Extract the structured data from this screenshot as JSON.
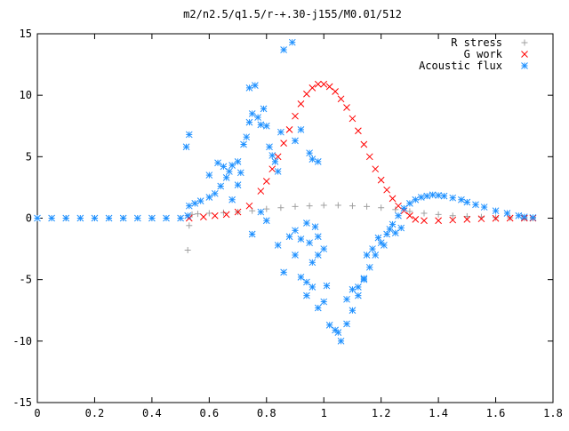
{
  "chart_data": {
    "type": "scatter",
    "title": "m2/n2.5/q1.5/r-+.30-j155/M0.01/512",
    "xlabel": "",
    "ylabel": "",
    "xlim": [
      0,
      1.8
    ],
    "ylim": [
      -15,
      15
    ],
    "x_ticks": [
      "0",
      "0.2",
      "0.4",
      "0.6",
      "0.8",
      "1",
      "1.2",
      "1.4",
      "1.6",
      "1.8"
    ],
    "y_ticks": [
      "15",
      "10",
      "5",
      "0",
      "-5",
      "-10",
      "-15"
    ],
    "grid": false,
    "legend_position": "top-right",
    "series": [
      {
        "name": "R stress",
        "color": "#a0a0a0",
        "marker": "plus",
        "points": [
          [
            0.0,
            0
          ],
          [
            0.1,
            0
          ],
          [
            0.2,
            0
          ],
          [
            0.3,
            0
          ],
          [
            0.4,
            0
          ],
          [
            0.5,
            0
          ],
          [
            0.525,
            -2.6
          ],
          [
            0.53,
            -0.6
          ],
          [
            0.54,
            0.3
          ],
          [
            0.56,
            0.35
          ],
          [
            0.6,
            0.4
          ],
          [
            0.65,
            0.45
          ],
          [
            0.7,
            0.5
          ],
          [
            0.75,
            0.6
          ],
          [
            0.8,
            0.75
          ],
          [
            0.85,
            0.85
          ],
          [
            0.9,
            0.95
          ],
          [
            0.95,
            1.0
          ],
          [
            1.0,
            1.05
          ],
          [
            1.05,
            1.05
          ],
          [
            1.1,
            1.0
          ],
          [
            1.15,
            0.95
          ],
          [
            1.2,
            0.85
          ],
          [
            1.25,
            0.7
          ],
          [
            1.3,
            0.55
          ],
          [
            1.35,
            0.4
          ],
          [
            1.4,
            0.3
          ],
          [
            1.45,
            0.2
          ],
          [
            1.5,
            0.15
          ],
          [
            1.55,
            0.1
          ],
          [
            1.6,
            0.05
          ],
          [
            1.65,
            0.03
          ],
          [
            1.7,
            0.01
          ],
          [
            1.73,
            0
          ]
        ]
      },
      {
        "name": "G work",
        "color": "#ff0000",
        "marker": "cross",
        "points": [
          [
            0.53,
            0
          ],
          [
            0.58,
            0.1
          ],
          [
            0.62,
            0.2
          ],
          [
            0.66,
            0.3
          ],
          [
            0.7,
            0.5
          ],
          [
            0.74,
            1.0
          ],
          [
            0.78,
            2.2
          ],
          [
            0.8,
            3.0
          ],
          [
            0.82,
            4.0
          ],
          [
            0.84,
            5.0
          ],
          [
            0.86,
            6.1
          ],
          [
            0.88,
            7.2
          ],
          [
            0.9,
            8.3
          ],
          [
            0.92,
            9.3
          ],
          [
            0.94,
            10.1
          ],
          [
            0.96,
            10.6
          ],
          [
            0.98,
            10.9
          ],
          [
            1.0,
            10.9
          ],
          [
            1.02,
            10.7
          ],
          [
            1.04,
            10.3
          ],
          [
            1.06,
            9.7
          ],
          [
            1.08,
            9.0
          ],
          [
            1.1,
            8.1
          ],
          [
            1.12,
            7.1
          ],
          [
            1.14,
            6.0
          ],
          [
            1.16,
            5.0
          ],
          [
            1.18,
            4.0
          ],
          [
            1.2,
            3.1
          ],
          [
            1.22,
            2.3
          ],
          [
            1.24,
            1.6
          ],
          [
            1.26,
            1.0
          ],
          [
            1.28,
            0.6
          ],
          [
            1.3,
            0.2
          ],
          [
            1.32,
            -0.1
          ],
          [
            1.35,
            -0.2
          ],
          [
            1.4,
            -0.2
          ],
          [
            1.45,
            -0.15
          ],
          [
            1.5,
            -0.1
          ],
          [
            1.55,
            -0.05
          ],
          [
            1.6,
            -0.02
          ],
          [
            1.65,
            0
          ],
          [
            1.7,
            0
          ],
          [
            1.73,
            0
          ]
        ]
      },
      {
        "name": "Acoustic flux",
        "color": "#1e90ff",
        "marker": "star",
        "points": [
          [
            0.0,
            0
          ],
          [
            0.05,
            0
          ],
          [
            0.1,
            0
          ],
          [
            0.15,
            0
          ],
          [
            0.2,
            0
          ],
          [
            0.25,
            0
          ],
          [
            0.3,
            0
          ],
          [
            0.35,
            0
          ],
          [
            0.4,
            0
          ],
          [
            0.45,
            0
          ],
          [
            0.5,
            0
          ],
          [
            0.525,
            0.2
          ],
          [
            0.53,
            1.0
          ],
          [
            0.55,
            1.2
          ],
          [
            0.57,
            1.4
          ],
          [
            0.6,
            1.7
          ],
          [
            0.62,
            2.0
          ],
          [
            0.64,
            2.6
          ],
          [
            0.66,
            3.3
          ],
          [
            0.67,
            3.8
          ],
          [
            0.68,
            4.3
          ],
          [
            0.7,
            4.6
          ],
          [
            0.52,
            5.8
          ],
          [
            0.53,
            6.8
          ],
          [
            0.6,
            3.5
          ],
          [
            0.63,
            4.5
          ],
          [
            0.65,
            4.2
          ],
          [
            0.68,
            1.5
          ],
          [
            0.7,
            2.7
          ],
          [
            0.71,
            3.7
          ],
          [
            0.72,
            6.0
          ],
          [
            0.73,
            6.6
          ],
          [
            0.74,
            10.6
          ],
          [
            0.76,
            10.8
          ],
          [
            0.74,
            7.8
          ],
          [
            0.75,
            8.5
          ],
          [
            0.77,
            8.2
          ],
          [
            0.78,
            7.6
          ],
          [
            0.79,
            8.9
          ],
          [
            0.8,
            7.5
          ],
          [
            0.81,
            5.8
          ],
          [
            0.82,
            5.1
          ],
          [
            0.83,
            4.6
          ],
          [
            0.84,
            3.8
          ],
          [
            0.85,
            7.0
          ],
          [
            0.86,
            13.7
          ],
          [
            0.89,
            14.3
          ],
          [
            0.9,
            6.3
          ],
          [
            0.92,
            7.2
          ],
          [
            0.95,
            5.3
          ],
          [
            0.96,
            4.8
          ],
          [
            0.98,
            4.6
          ],
          [
            0.75,
            -1.3
          ],
          [
            0.78,
            0.5
          ],
          [
            0.8,
            -0.2
          ],
          [
            0.84,
            -2.2
          ],
          [
            0.86,
            -4.4
          ],
          [
            0.88,
            -1.5
          ],
          [
            0.9,
            -1.0
          ],
          [
            0.92,
            -1.7
          ],
          [
            0.94,
            -0.4
          ],
          [
            0.95,
            -2.0
          ],
          [
            0.97,
            -0.7
          ],
          [
            0.98,
            -1.5
          ],
          [
            0.9,
            -3.0
          ],
          [
            0.92,
            -4.8
          ],
          [
            0.94,
            -5.2
          ],
          [
            0.96,
            -3.6
          ],
          [
            0.98,
            -3.0
          ],
          [
            1.0,
            -2.5
          ],
          [
            0.94,
            -6.3
          ],
          [
            0.96,
            -5.6
          ],
          [
            0.98,
            -7.3
          ],
          [
            1.0,
            -6.8
          ],
          [
            1.01,
            -5.5
          ],
          [
            1.02,
            -8.7
          ],
          [
            1.04,
            -9.1
          ],
          [
            1.05,
            -9.3
          ],
          [
            1.06,
            -10.0
          ],
          [
            1.08,
            -8.6
          ],
          [
            1.1,
            -7.5
          ],
          [
            1.12,
            -6.3
          ],
          [
            1.14,
            -5.0
          ],
          [
            1.16,
            -4.0
          ],
          [
            1.18,
            -3.0
          ],
          [
            1.2,
            -2.0
          ],
          [
            1.22,
            -1.3
          ],
          [
            1.24,
            -0.5
          ],
          [
            1.26,
            0.2
          ],
          [
            1.28,
            0.8
          ],
          [
            1.3,
            1.2
          ],
          [
            1.32,
            1.5
          ],
          [
            1.34,
            1.7
          ],
          [
            1.36,
            1.8
          ],
          [
            1.38,
            1.9
          ],
          [
            1.4,
            1.85
          ],
          [
            1.42,
            1.8
          ],
          [
            1.45,
            1.65
          ],
          [
            1.48,
            1.5
          ],
          [
            1.5,
            1.3
          ],
          [
            1.53,
            1.1
          ],
          [
            1.56,
            0.9
          ],
          [
            1.6,
            0.6
          ],
          [
            1.64,
            0.4
          ],
          [
            1.68,
            0.2
          ],
          [
            1.7,
            0.1
          ],
          [
            1.73,
            0.05
          ],
          [
            1.08,
            -6.6
          ],
          [
            1.1,
            -5.8
          ],
          [
            1.12,
            -5.6
          ],
          [
            1.14,
            -4.9
          ],
          [
            1.15,
            -3.0
          ],
          [
            1.17,
            -2.5
          ],
          [
            1.19,
            -1.6
          ],
          [
            1.21,
            -2.2
          ],
          [
            1.23,
            -0.9
          ],
          [
            1.25,
            -1.2
          ],
          [
            1.27,
            -0.8
          ]
        ]
      }
    ]
  }
}
